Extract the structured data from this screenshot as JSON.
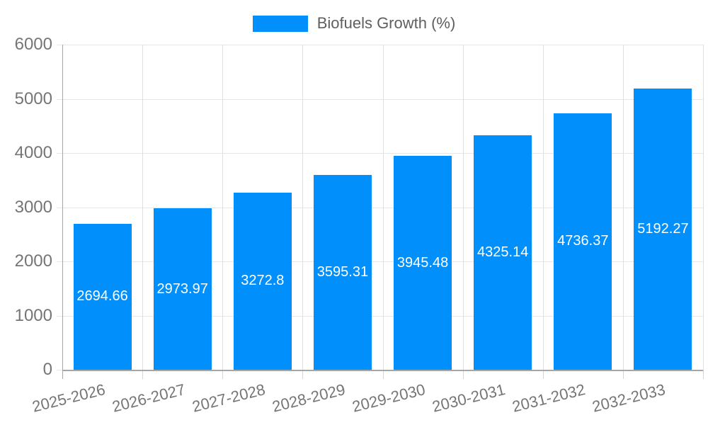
{
  "chart_data": {
    "type": "bar",
    "title": "",
    "legend_label": "Biofuels Growth (%)",
    "legend_position": "top",
    "categories": [
      "2025-2026",
      "2026-2027",
      "2027-2028",
      "2028-2029",
      "2029-2030",
      "2030-2031",
      "2031-2032",
      "2032-2033"
    ],
    "values": [
      2694.66,
      2973.97,
      3272.8,
      3595.31,
      3945.48,
      4325.14,
      4736.37,
      5192.27
    ],
    "data_labels": [
      "2694.66",
      "2973.97",
      "3272.8",
      "3595.31",
      "3945.48",
      "4325.14",
      "4736.37",
      "5192.27"
    ],
    "xlabel": "",
    "ylabel": "",
    "ylim": [
      0,
      6000
    ],
    "ytick_step": 1000,
    "yticks": [
      "0",
      "1000",
      "2000",
      "3000",
      "4000",
      "5000",
      "6000"
    ],
    "grid": "horizontal-and-vertical",
    "colors": {
      "bar": "#008FFB",
      "axis_line": "#a6a6a6",
      "gridline": "#e6e6e6",
      "tick_label": "#757575",
      "legend_text": "#5f5f5f",
      "data_label": "#ffffff",
      "background": "#ffffff"
    }
  }
}
